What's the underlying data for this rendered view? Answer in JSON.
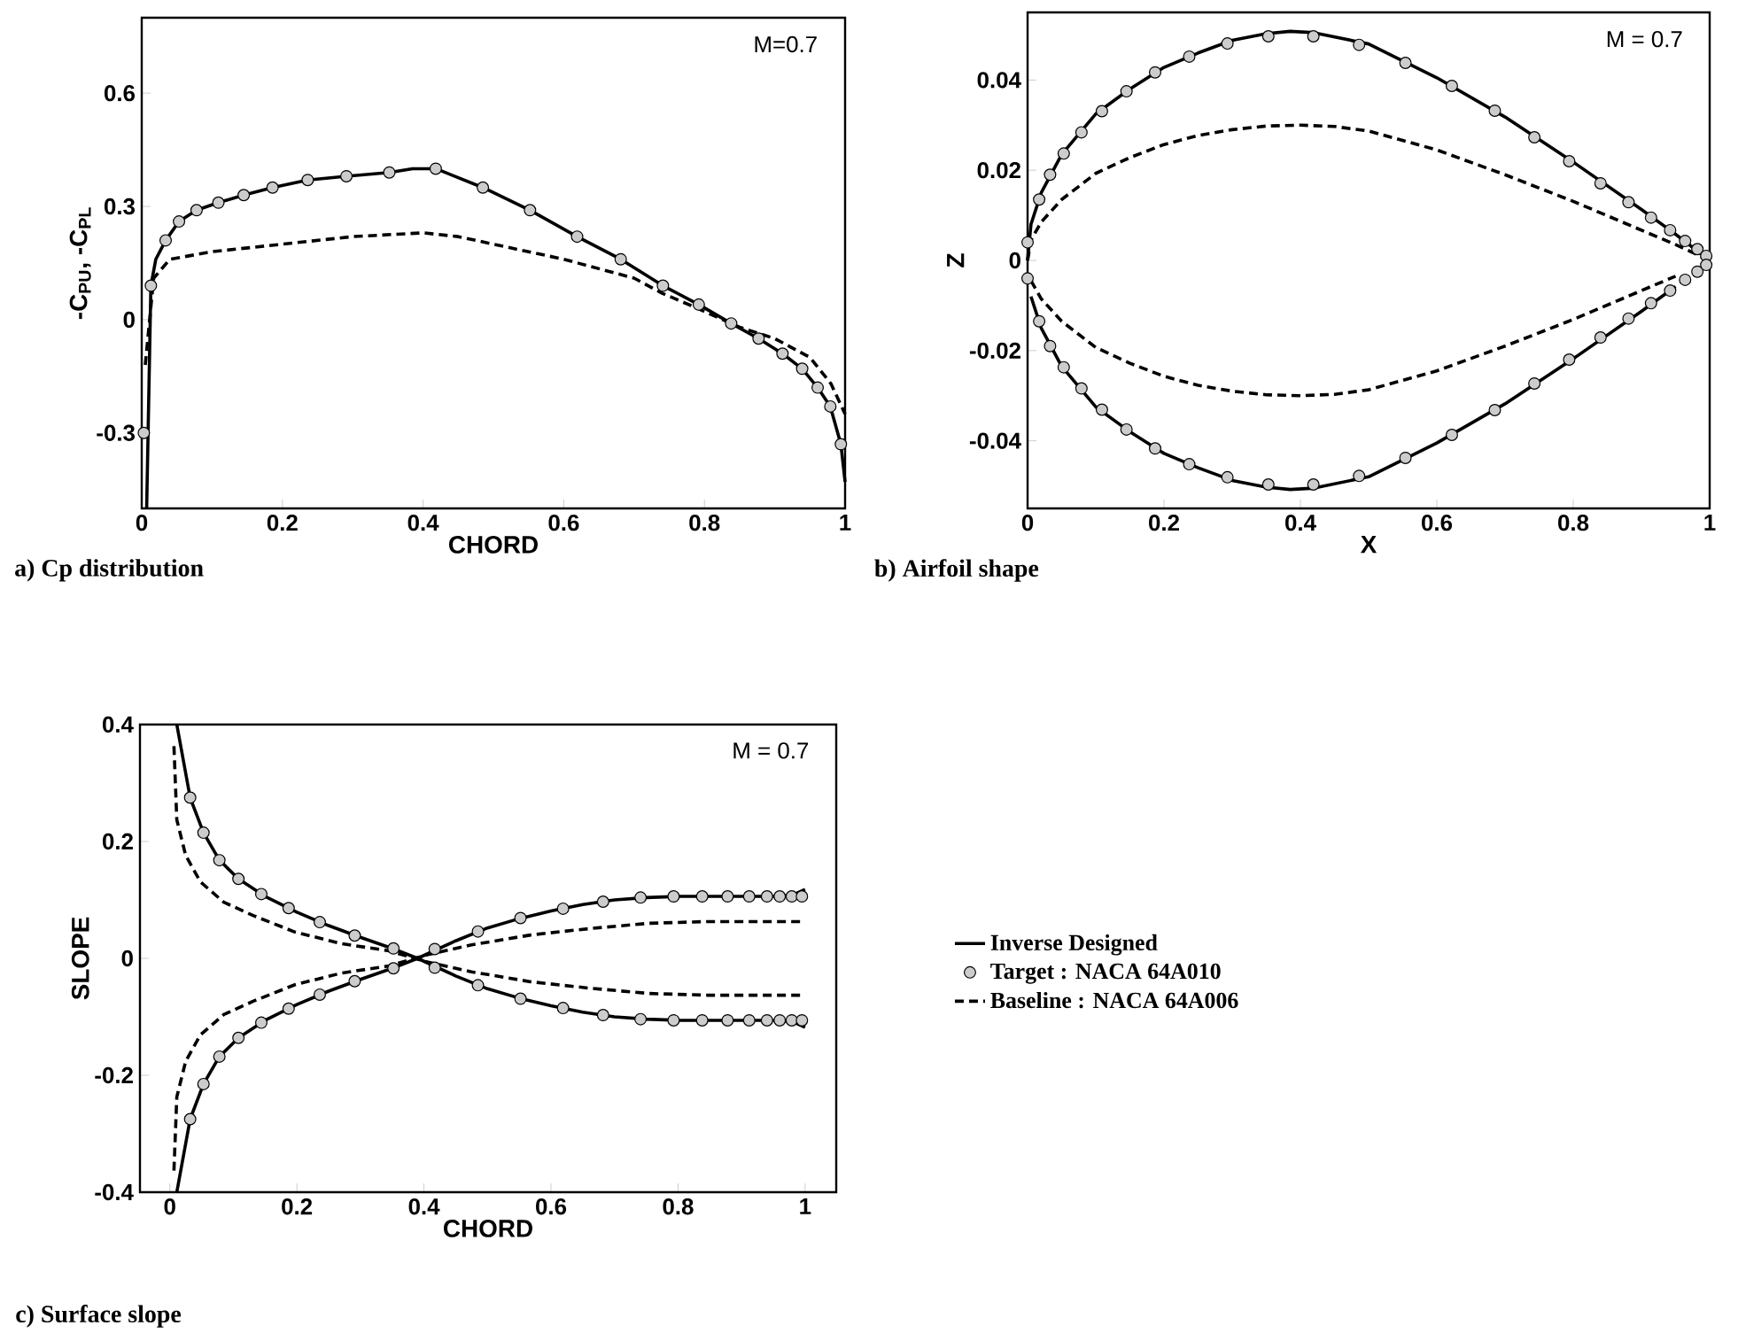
{
  "chart_data": [
    {
      "type": "line",
      "xlabel": "CHORD",
      "ylabel": "-C$_{PU}$, -C$_{PL}$",
      "xlim": [
        0,
        1
      ],
      "ylim": [
        -0.5,
        0.8
      ],
      "xticks": [
        0,
        0.2,
        0.4,
        0.6,
        0.8,
        1
      ],
      "yticks": [
        -0.3,
        0,
        0.3,
        0.6
      ],
      "annotations": [
        "M=0.7",
        "a) Cp distribution"
      ],
      "series": [
        {
          "color": "#000000",
          "line_style": "solid",
          "marker": "none",
          "x": [
            0.007,
            0.013,
            0.02,
            0.034,
            0.053,
            0.078,
            0.109,
            0.145,
            0.186,
            0.236,
            0.291,
            0.352,
            0.385,
            0.418,
            0.485,
            0.552,
            0.619,
            0.681,
            0.741,
            0.792,
            0.838,
            0.877,
            0.911,
            0.939,
            0.961,
            0.979,
            0.994,
            1.0
          ],
          "values": [
            -0.5,
            0.09,
            0.16,
            0.21,
            0.26,
            0.29,
            0.31,
            0.33,
            0.35,
            0.37,
            0.38,
            0.39,
            0.4,
            0.4,
            0.35,
            0.29,
            0.22,
            0.16,
            0.09,
            0.04,
            -0.01,
            -0.05,
            -0.09,
            -0.13,
            -0.18,
            -0.23,
            -0.33,
            -0.43
          ]
        },
        {
          "type": "scatter",
          "color": "#cccccc",
          "marker": "circle",
          "x": [
            0.003,
            0.013,
            0.034,
            0.053,
            0.078,
            0.109,
            0.145,
            0.186,
            0.236,
            0.291,
            0.352,
            0.418,
            0.485,
            0.552,
            0.619,
            0.681,
            0.741,
            0.792,
            0.838,
            0.877,
            0.911,
            0.939,
            0.961,
            0.979,
            0.994
          ],
          "values": [
            -0.3,
            0.09,
            0.21,
            0.26,
            0.29,
            0.31,
            0.33,
            0.35,
            0.37,
            0.38,
            0.39,
            0.4,
            0.35,
            0.29,
            0.22,
            0.16,
            0.09,
            0.04,
            -0.01,
            -0.05,
            -0.09,
            -0.13,
            -0.18,
            -0.23,
            -0.33
          ]
        },
        {
          "color": "#000000",
          "line_style": "dashed",
          "marker": "none",
          "x": [
            0.005,
            0.017,
            0.04,
            0.1,
            0.2,
            0.3,
            0.4,
            0.45,
            0.5,
            0.6,
            0.7,
            0.74,
            0.79,
            0.85,
            0.9,
            0.95,
            0.98,
            1.0
          ],
          "values": [
            -0.12,
            0.11,
            0.16,
            0.18,
            0.2,
            0.22,
            0.23,
            0.22,
            0.2,
            0.16,
            0.11,
            0.07,
            0.03,
            -0.02,
            -0.05,
            -0.1,
            -0.17,
            -0.25
          ]
        }
      ]
    },
    {
      "type": "line",
      "xlabel": "X",
      "ylabel": "Z",
      "xlim": [
        0,
        1
      ],
      "ylim": [
        -0.055,
        0.055
      ],
      "xticks": [
        0,
        0.2,
        0.4,
        0.6,
        0.8,
        1
      ],
      "yticks": [
        -0.04,
        -0.02,
        0,
        0.02,
        0.04
      ],
      "annotations": [
        "M = 0.7",
        "b) Airfoil shape"
      ],
      "series": [
        {
          "color": "#000000",
          "line_style": "solid",
          "marker": "none",
          "x": [
            0,
            0.005,
            0.02,
            0.05,
            0.1,
            0.15,
            0.2,
            0.25,
            0.3,
            0.35,
            0.385,
            0.42,
            0.5,
            0.6,
            0.7,
            0.8,
            0.9,
            0.95,
            1.0
          ],
          "values": [
            0,
            0.008,
            0.015,
            0.0235,
            0.0325,
            0.038,
            0.0428,
            0.046,
            0.0488,
            0.0503,
            0.0508,
            0.0505,
            0.048,
            0.0405,
            0.0318,
            0.0218,
            0.0113,
            0.0058,
            0
          ]
        },
        {
          "color": "#000000",
          "line_style": "solid",
          "marker": "none",
          "x": [
            0.005,
            0.02,
            0.05,
            0.1,
            0.15,
            0.2,
            0.25,
            0.3,
            0.35,
            0.385,
            0.42,
            0.5,
            0.6,
            0.7,
            0.8,
            0.9,
            0.95
          ],
          "values": [
            -0.008,
            -0.015,
            -0.0235,
            -0.0325,
            -0.038,
            -0.0428,
            -0.046,
            -0.0488,
            -0.0503,
            -0.0508,
            -0.0505,
            -0.048,
            -0.0405,
            -0.0318,
            -0.0218,
            -0.0113,
            -0.0058
          ]
        },
        {
          "type": "scatter",
          "color": "#cccccc",
          "marker": "circle",
          "x": [
            0,
            0.017,
            0.033,
            0.053,
            0.079,
            0.109,
            0.145,
            0.187,
            0.237,
            0.293,
            0.353,
            0.419,
            0.486,
            0.554,
            0.622,
            0.685,
            0.743,
            0.794,
            0.84,
            0.881,
            0.914,
            0.942,
            0.964,
            0.982,
            0.995
          ],
          "values": [
            0.004,
            0.0135,
            0.019,
            0.0237,
            0.0284,
            0.0331,
            0.0375,
            0.0417,
            0.0452,
            0.0481,
            0.0497,
            0.0497,
            0.0478,
            0.0438,
            0.0387,
            0.0332,
            0.0273,
            0.022,
            0.0171,
            0.0129,
            0.0095,
            0.0067,
            0.0043,
            0.0025,
            0.001
          ]
        },
        {
          "type": "scatter",
          "color": "#cccccc",
          "marker": "circle",
          "x": [
            0,
            0.017,
            0.033,
            0.053,
            0.079,
            0.109,
            0.145,
            0.187,
            0.237,
            0.293,
            0.353,
            0.419,
            0.486,
            0.554,
            0.622,
            0.685,
            0.743,
            0.794,
            0.84,
            0.881,
            0.914,
            0.942,
            0.964,
            0.982,
            0.995
          ],
          "values": [
            -0.004,
            -0.0135,
            -0.019,
            -0.0237,
            -0.0284,
            -0.0331,
            -0.0375,
            -0.0417,
            -0.0452,
            -0.0481,
            -0.0497,
            -0.0497,
            -0.0478,
            -0.0438,
            -0.0387,
            -0.0332,
            -0.0273,
            -0.022,
            -0.0171,
            -0.0129,
            -0.0095,
            -0.0067,
            -0.0043,
            -0.0025,
            -0.001
          ]
        },
        {
          "color": "#000000",
          "line_style": "dashed",
          "marker": "none",
          "x": [
            0,
            0.005,
            0.02,
            0.05,
            0.1,
            0.15,
            0.2,
            0.25,
            0.3,
            0.35,
            0.4,
            0.45,
            0.5,
            0.6,
            0.7,
            0.8,
            0.9,
            0.95,
            1.0
          ],
          "values": [
            0,
            0.0045,
            0.0085,
            0.0135,
            0.0193,
            0.0228,
            0.0257,
            0.0277,
            0.029,
            0.0298,
            0.03,
            0.0297,
            0.0287,
            0.0245,
            0.019,
            0.0131,
            0.0067,
            0.0035,
            0
          ]
        },
        {
          "color": "#000000",
          "line_style": "dashed",
          "marker": "none",
          "x": [
            0.005,
            0.02,
            0.05,
            0.1,
            0.15,
            0.2,
            0.25,
            0.3,
            0.35,
            0.4,
            0.45,
            0.5,
            0.6,
            0.7,
            0.8,
            0.9,
            0.95
          ],
          "values": [
            -0.0045,
            -0.0085,
            -0.0135,
            -0.0193,
            -0.0228,
            -0.0257,
            -0.0277,
            -0.029,
            -0.0298,
            -0.03,
            -0.0297,
            -0.0287,
            -0.0245,
            -0.019,
            -0.0131,
            -0.0067,
            -0.0035
          ]
        }
      ]
    },
    {
      "type": "line",
      "xlabel": "CHORD",
      "ylabel": "SLOPE",
      "xlim": [
        -0.047,
        1.049
      ],
      "ylim": [
        -0.4,
        0.4
      ],
      "xticks": [
        0,
        0.2,
        0.4,
        0.6,
        0.8,
        1
      ],
      "yticks": [
        -0.4,
        -0.2,
        0,
        0.2,
        0.4
      ],
      "legend": "right",
      "annotations": [
        "M = 0.7",
        "c) Surface slope"
      ],
      "series": [
        {
          "name": "Inverse Designed",
          "color": "#000000",
          "line_style": "solid",
          "marker": "none",
          "x": [
            0.011,
            0.032,
            0.053,
            0.078,
            0.108,
            0.15,
            0.2,
            0.25,
            0.3,
            0.35,
            0.39,
            0.45,
            0.5,
            0.55,
            0.6,
            0.65,
            0.7,
            0.75,
            0.8,
            0.9,
            0.95,
            0.98,
            1.0
          ],
          "values": [
            0.4,
            0.275,
            0.215,
            0.168,
            0.136,
            0.106,
            0.079,
            0.056,
            0.036,
            0.017,
            0,
            -0.03,
            -0.052,
            -0.068,
            -0.081,
            -0.092,
            -0.1,
            -0.104,
            -0.106,
            -0.106,
            -0.106,
            -0.108,
            -0.118
          ]
        },
        {
          "color": "#000000",
          "line_style": "solid",
          "marker": "none",
          "x": [
            0.011,
            0.032,
            0.053,
            0.078,
            0.108,
            0.15,
            0.2,
            0.25,
            0.3,
            0.35,
            0.39,
            0.45,
            0.5,
            0.55,
            0.6,
            0.65,
            0.7,
            0.75,
            0.8,
            0.9,
            0.95,
            0.98,
            1.0
          ],
          "values": [
            -0.4,
            -0.275,
            -0.215,
            -0.168,
            -0.136,
            -0.106,
            -0.079,
            -0.056,
            -0.036,
            -0.017,
            0,
            0.03,
            0.052,
            0.068,
            0.081,
            0.092,
            0.1,
            0.104,
            0.106,
            0.106,
            0.106,
            0.108,
            0.118
          ]
        },
        {
          "name": "Target : NACA 64A010",
          "type": "scatter",
          "color": "#cccccc",
          "marker": "circle",
          "x": [
            0.032,
            0.053,
            0.078,
            0.108,
            0.144,
            0.187,
            0.236,
            0.291,
            0.352,
            0.417,
            0.485,
            0.552,
            0.619,
            0.682,
            0.741,
            0.793,
            0.838,
            0.878,
            0.912,
            0.94,
            0.96,
            0.979,
            0.995
          ],
          "values": [
            0.275,
            0.215,
            0.168,
            0.136,
            0.11,
            0.086,
            0.062,
            0.039,
            0.017,
            -0.016,
            -0.046,
            -0.069,
            -0.085,
            -0.097,
            -0.104,
            -0.106,
            -0.106,
            -0.106,
            -0.106,
            -0.106,
            -0.106,
            -0.106,
            -0.106
          ]
        },
        {
          "type": "scatter",
          "color": "#cccccc",
          "marker": "circle",
          "x": [
            0.032,
            0.053,
            0.078,
            0.108,
            0.144,
            0.187,
            0.236,
            0.291,
            0.352,
            0.417,
            0.485,
            0.552,
            0.619,
            0.682,
            0.741,
            0.793,
            0.838,
            0.878,
            0.912,
            0.94,
            0.96,
            0.979,
            0.995
          ],
          "values": [
            -0.275,
            -0.215,
            -0.168,
            -0.136,
            -0.11,
            -0.086,
            -0.062,
            -0.039,
            -0.017,
            0.016,
            0.046,
            0.069,
            0.085,
            0.097,
            0.104,
            0.106,
            0.106,
            0.106,
            0.106,
            0.106,
            0.106,
            0.106,
            0.106
          ]
        },
        {
          "name": "Baseline : NACA 64A006",
          "color": "#000000",
          "line_style": "dashed",
          "marker": "none",
          "x": [
            0.0065,
            0.011,
            0.025,
            0.048,
            0.085,
            0.132,
            0.197,
            0.271,
            0.345,
            0.401,
            0.475,
            0.568,
            0.661,
            0.754,
            0.847,
            0.995
          ],
          "values": [
            0.363,
            0.237,
            0.176,
            0.131,
            0.096,
            0.073,
            0.045,
            0.025,
            0.013,
            -0.005,
            -0.023,
            -0.04,
            -0.051,
            -0.06,
            -0.063,
            -0.063
          ]
        },
        {
          "color": "#000000",
          "line_style": "dashed",
          "marker": "none",
          "x": [
            0.0065,
            0.011,
            0.025,
            0.048,
            0.085,
            0.132,
            0.197,
            0.271,
            0.345,
            0.401,
            0.475,
            0.568,
            0.661,
            0.754,
            0.847,
            0.995
          ],
          "values": [
            -0.363,
            -0.237,
            -0.176,
            -0.131,
            -0.096,
            -0.073,
            -0.045,
            -0.025,
            -0.013,
            0.005,
            0.023,
            0.04,
            0.051,
            0.06,
            0.063,
            0.063
          ]
        }
      ]
    }
  ]
}
